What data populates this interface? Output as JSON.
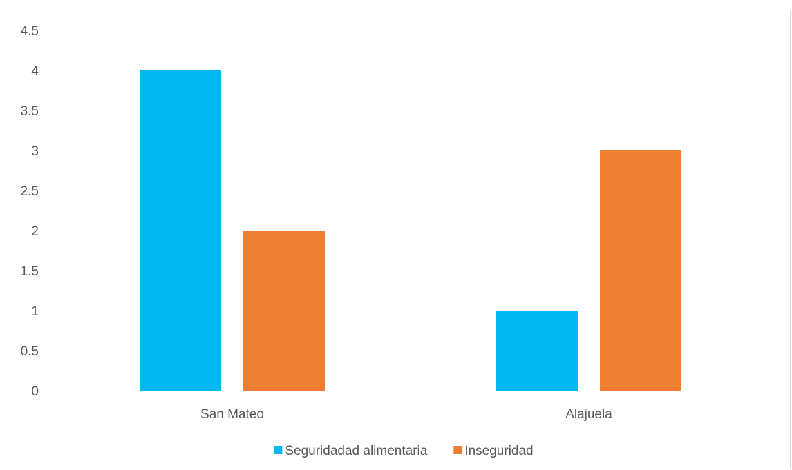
{
  "chart_data": {
    "type": "bar",
    "categories": [
      "San Mateo",
      "Alajuela"
    ],
    "series": [
      {
        "name": "Seguridadad alimentaria",
        "values": [
          4,
          1
        ],
        "color": "#00b7f1"
      },
      {
        "name": "Inseguridad",
        "values": [
          2,
          3
        ],
        "color": "#ed7d31"
      }
    ],
    "yticks": [
      "0",
      "0.5",
      "1",
      "1.5",
      "2",
      "2.5",
      "3",
      "3.5",
      "4",
      "4.5"
    ],
    "ylim": [
      0,
      4.5
    ],
    "grid": false,
    "legend_position": "bottom",
    "axis_color": "#d9d9d9"
  }
}
